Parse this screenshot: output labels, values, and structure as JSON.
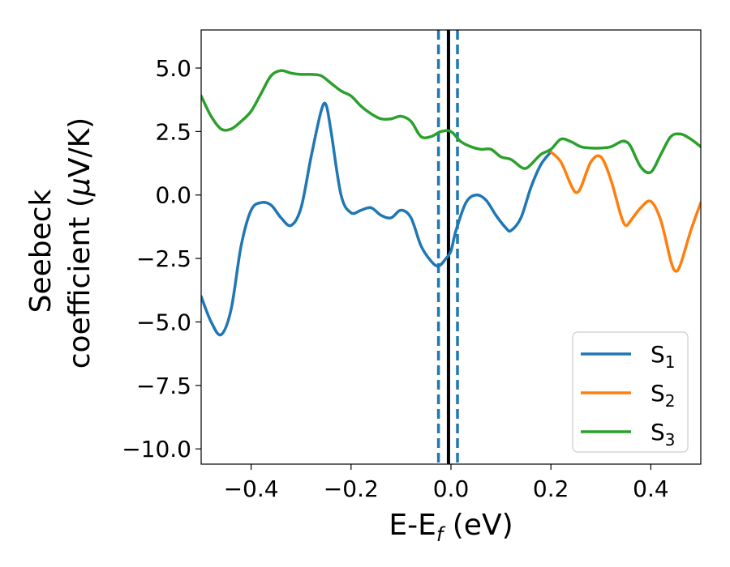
{
  "chart_data": {
    "type": "line",
    "xlabel": "E-E",
    "xlabel_sub": "f",
    "xlabel_unit": " (eV)",
    "ylabel_line1": "Seebeck",
    "ylabel_line2_prefix": "coefficient  (",
    "ylabel_mu": "μ",
    "ylabel_line2_suffix": "V/K)",
    "xlim": [
      -0.5,
      0.5
    ],
    "ylim": [
      -10.6,
      6.5
    ],
    "xticks": [
      -0.4,
      -0.2,
      0.0,
      0.2,
      0.4
    ],
    "xtick_labels": [
      "−0.4",
      "−0.2",
      "0.0",
      "0.2",
      "0.4"
    ],
    "yticks": [
      5.0,
      2.5,
      0.0,
      -2.5,
      -5.0,
      -7.5,
      -10.0
    ],
    "ytick_labels": [
      "5.0",
      "2.5",
      "0.0",
      "−2.5",
      "−5.0",
      "−7.5",
      "−10.0"
    ],
    "grid": false,
    "legend_position": "bottom-right",
    "vlines": [
      {
        "x": -0.025,
        "style": "dashed",
        "color": "#1f77b4"
      },
      {
        "x": 0.013,
        "style": "dashed",
        "color": "#1f77b4"
      },
      {
        "x": -0.005,
        "style": "solid",
        "color": "#000000"
      }
    ],
    "series": [
      {
        "name": "S",
        "sub": "1",
        "color": "#1f77b4",
        "x": [
          -0.5,
          -0.48,
          -0.46,
          -0.44,
          -0.42,
          -0.4,
          -0.38,
          -0.36,
          -0.34,
          -0.32,
          -0.3,
          -0.28,
          -0.26,
          -0.25,
          -0.24,
          -0.22,
          -0.2,
          -0.18,
          -0.16,
          -0.14,
          -0.12,
          -0.1,
          -0.08,
          -0.06,
          -0.04,
          -0.025,
          -0.01,
          0.0,
          0.01,
          0.03,
          0.05,
          0.07,
          0.09,
          0.11,
          0.12,
          0.14,
          0.16,
          0.18,
          0.2
        ],
        "y": [
          -4.0,
          -5.0,
          -5.5,
          -4.5,
          -2.0,
          -0.6,
          -0.3,
          -0.4,
          -0.9,
          -1.2,
          -0.5,
          1.5,
          3.3,
          3.55,
          2.5,
          0.0,
          -0.7,
          -0.6,
          -0.5,
          -0.8,
          -0.9,
          -0.6,
          -0.9,
          -2.0,
          -2.6,
          -2.8,
          -2.5,
          -2.2,
          -1.4,
          -0.3,
          0.0,
          -0.2,
          -0.8,
          -1.3,
          -1.4,
          -0.9,
          0.3,
          1.2,
          1.7
        ]
      },
      {
        "name": "S",
        "sub": "2",
        "color": "#ff7f0e",
        "x": [
          0.2,
          0.22,
          0.24,
          0.25,
          0.26,
          0.28,
          0.3,
          0.32,
          0.34,
          0.35,
          0.36,
          0.38,
          0.4,
          0.42,
          0.44,
          0.45,
          0.46,
          0.48,
          0.5
        ],
        "y": [
          1.7,
          1.3,
          0.4,
          0.1,
          0.3,
          1.3,
          1.5,
          0.6,
          -0.8,
          -1.2,
          -1.0,
          -0.5,
          -0.25,
          -1.0,
          -2.6,
          -3.0,
          -2.7,
          -1.4,
          -0.3
        ]
      },
      {
        "name": "S",
        "sub": "3",
        "color": "#2ca02c",
        "x": [
          -0.5,
          -0.48,
          -0.46,
          -0.44,
          -0.42,
          -0.4,
          -0.38,
          -0.36,
          -0.34,
          -0.32,
          -0.3,
          -0.28,
          -0.26,
          -0.24,
          -0.22,
          -0.2,
          -0.18,
          -0.16,
          -0.14,
          -0.12,
          -0.1,
          -0.08,
          -0.06,
          -0.04,
          -0.02,
          0.0,
          0.02,
          0.04,
          0.06,
          0.08,
          0.1,
          0.12,
          0.14,
          0.15,
          0.16,
          0.18,
          0.2,
          0.22,
          0.24,
          0.26,
          0.28,
          0.3,
          0.32,
          0.34,
          0.35,
          0.36,
          0.38,
          0.4,
          0.42,
          0.44,
          0.46,
          0.48,
          0.5
        ],
        "y": [
          3.9,
          3.1,
          2.6,
          2.6,
          2.9,
          3.3,
          4.0,
          4.7,
          4.9,
          4.8,
          4.75,
          4.75,
          4.7,
          4.4,
          4.1,
          3.9,
          3.5,
          3.2,
          3.0,
          3.0,
          3.1,
          2.9,
          2.3,
          2.3,
          2.5,
          2.5,
          2.1,
          1.9,
          1.8,
          1.8,
          1.5,
          1.4,
          1.1,
          1.05,
          1.2,
          1.6,
          1.8,
          2.2,
          2.1,
          1.9,
          1.85,
          1.85,
          1.9,
          2.1,
          2.1,
          1.9,
          1.1,
          0.9,
          1.6,
          2.3,
          2.4,
          2.2,
          1.9
        ]
      }
    ]
  }
}
